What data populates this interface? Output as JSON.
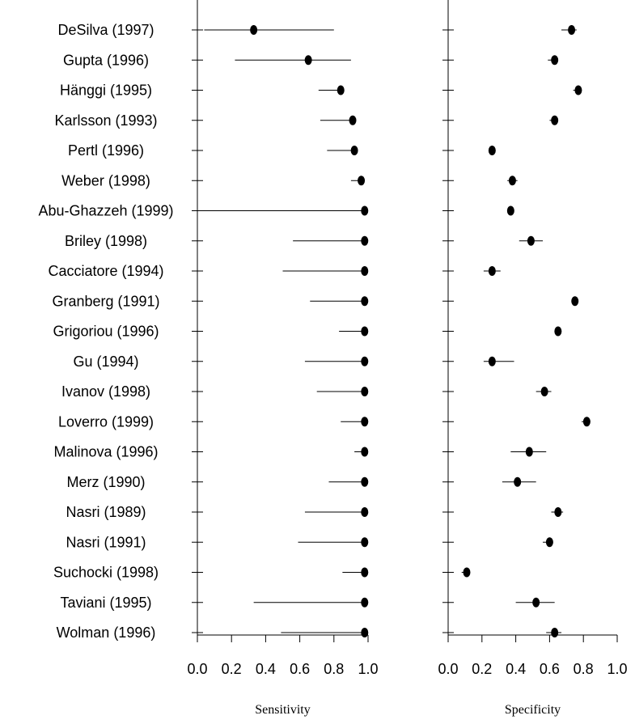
{
  "studies": [
    "DeSilva (1997)",
    "Gupta (1996)",
    "Hänggi (1995)",
    "Karlsson (1993)",
    "Pertl (1996)",
    "Weber (1998)",
    "Abu-Ghazzeh (1999)",
    "Briley (1998)",
    "Cacciatore (1994)",
    "Granberg (1991)",
    "Grigoriou (1996)",
    "Gu (1994)",
    "Ivanov (1998)",
    "Loverro (1999)",
    "Malinova (1996)",
    "Merz (1990)",
    "Nasri (1989)",
    "Nasri (1991)",
    "Suchocki (1998)",
    "Taviani (1995)",
    "Wolman (1996)"
  ],
  "chart_data": [
    {
      "type": "scatter",
      "xlabel": "Sensitivity",
      "xlim": [
        0,
        1
      ],
      "xticks": [
        "0.0",
        "0.2",
        "0.4",
        "0.6",
        "0.8",
        "1.0"
      ],
      "categories": [
        "DeSilva (1997)",
        "Gupta (1996)",
        "Hänggi (1995)",
        "Karlsson (1993)",
        "Pertl (1996)",
        "Weber (1998)",
        "Abu-Ghazzeh (1999)",
        "Briley (1998)",
        "Cacciatore (1994)",
        "Granberg (1991)",
        "Grigoriou (1996)",
        "Gu (1994)",
        "Ivanov (1998)",
        "Loverro (1999)",
        "Malinova (1996)",
        "Merz (1990)",
        "Nasri (1989)",
        "Nasri (1991)",
        "Suchocki (1998)",
        "Taviani (1995)",
        "Wolman (1996)"
      ],
      "values": [
        0.33,
        0.65,
        0.84,
        0.91,
        0.92,
        0.96,
        0.98,
        0.98,
        0.98,
        0.98,
        0.98,
        0.98,
        0.98,
        0.98,
        0.98,
        0.98,
        0.98,
        0.98,
        0.98,
        0.98,
        0.98
      ],
      "ci_low": [
        0.04,
        0.22,
        0.71,
        0.72,
        0.76,
        0.9,
        0.0,
        0.56,
        0.5,
        0.66,
        0.83,
        0.63,
        0.7,
        0.84,
        0.92,
        0.77,
        0.63,
        0.59,
        0.85,
        0.33,
        0.49
      ],
      "ci_high": [
        0.8,
        0.9,
        0.85,
        0.91,
        0.92,
        0.96,
        0.98,
        0.98,
        0.98,
        0.98,
        0.98,
        0.98,
        0.98,
        0.98,
        0.98,
        0.98,
        0.98,
        0.98,
        0.98,
        0.98,
        0.98
      ]
    },
    {
      "type": "scatter",
      "xlabel": "Specificity",
      "xlim": [
        0,
        1
      ],
      "xticks": [
        "0.0",
        "0.2",
        "0.4",
        "0.6",
        "0.8",
        "1.0"
      ],
      "categories": [
        "DeSilva (1997)",
        "Gupta (1996)",
        "Hänggi (1995)",
        "Karlsson (1993)",
        "Pertl (1996)",
        "Weber (1998)",
        "Abu-Ghazzeh (1999)",
        "Briley (1998)",
        "Cacciatore (1994)",
        "Granberg (1991)",
        "Grigoriou (1996)",
        "Gu (1994)",
        "Ivanov (1998)",
        "Loverro (1999)",
        "Malinova (1996)",
        "Merz (1990)",
        "Nasri (1989)",
        "Nasri (1991)",
        "Suchocki (1998)",
        "Taviani (1995)",
        "Wolman (1996)"
      ],
      "values": [
        0.73,
        0.63,
        0.77,
        0.63,
        0.26,
        0.38,
        0.37,
        0.49,
        0.26,
        0.75,
        0.65,
        0.26,
        0.57,
        0.82,
        0.48,
        0.41,
        0.65,
        0.6,
        0.11,
        0.52,
        0.63
      ],
      "ci_low": [
        0.67,
        0.59,
        0.74,
        0.6,
        0.24,
        0.35,
        0.35,
        0.42,
        0.21,
        0.74,
        0.64,
        0.21,
        0.52,
        0.79,
        0.37,
        0.32,
        0.61,
        0.56,
        0.08,
        0.4,
        0.58
      ],
      "ci_high": [
        0.76,
        0.65,
        0.79,
        0.65,
        0.28,
        0.41,
        0.39,
        0.56,
        0.31,
        0.76,
        0.67,
        0.39,
        0.61,
        0.84,
        0.58,
        0.52,
        0.68,
        0.62,
        0.12,
        0.63,
        0.67
      ]
    }
  ]
}
